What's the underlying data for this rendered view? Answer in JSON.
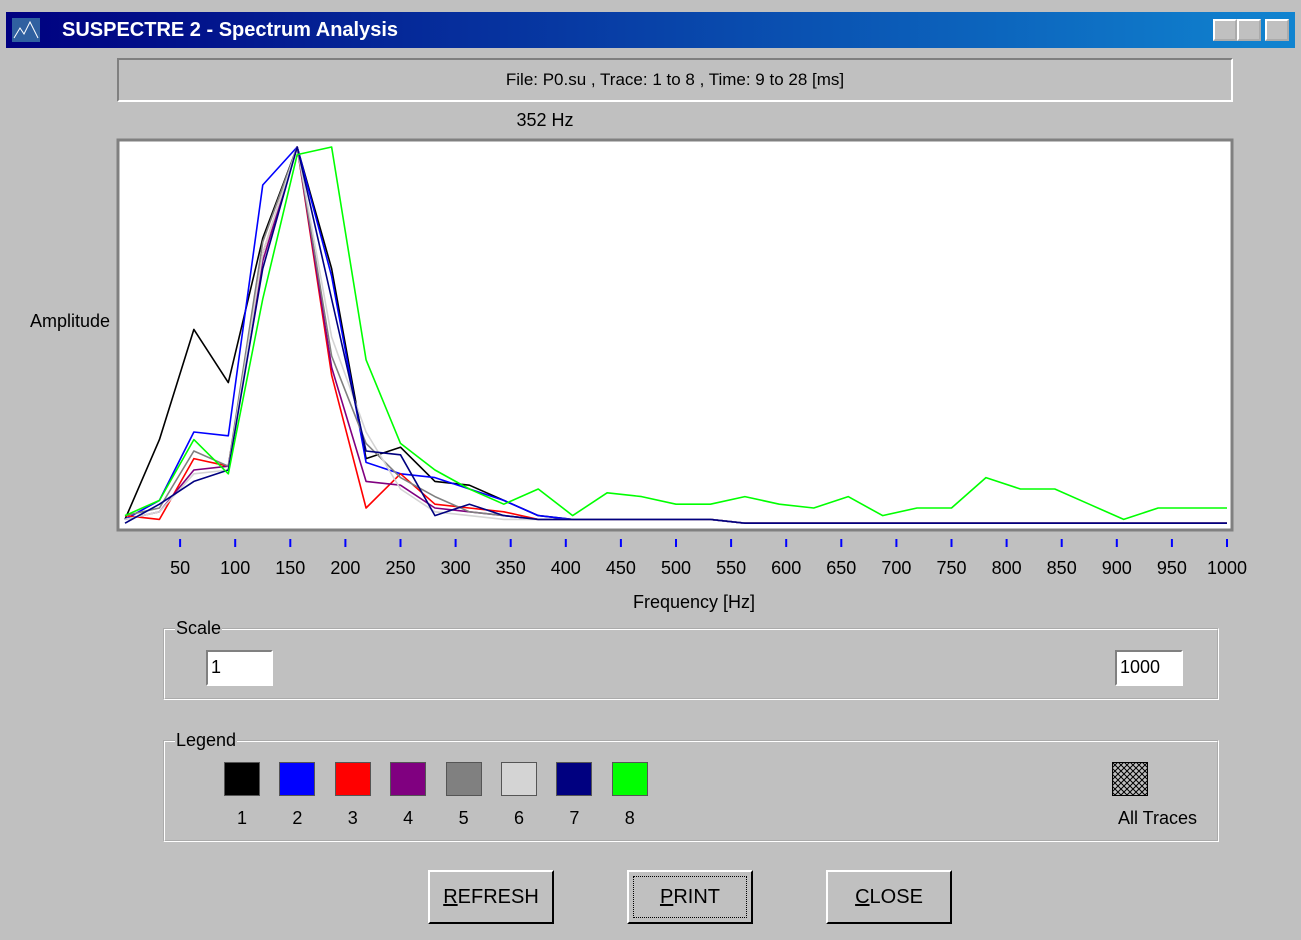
{
  "window": {
    "title": "SUSPECTRE 2 - Spectrum Analysis"
  },
  "info_bar": "File: P0.su , Trace: 1 to 8 , Time: 9 to 28 [ms]",
  "chart_data": {
    "type": "line",
    "annotation": "352 Hz",
    "xlabel": "Frequency [Hz]",
    "ylabel": "Amplitude",
    "x": [
      0,
      31.25,
      62.5,
      93.75,
      125,
      156.25,
      187.5,
      218.75,
      250,
      281.25,
      312.5,
      343.75,
      375,
      406.25,
      437.5,
      468.75,
      500,
      531.25,
      562.5,
      593.75,
      625,
      656.25,
      687.5,
      718.75,
      750,
      781.25,
      812.5,
      843.75,
      875,
      906.25,
      937.5,
      968.75,
      1000
    ],
    "xlim": [
      0,
      1000
    ],
    "xticks": [
      50,
      100,
      150,
      200,
      250,
      300,
      350,
      400,
      450,
      500,
      550,
      600,
      650,
      700,
      750,
      800,
      850,
      900,
      950,
      1000
    ],
    "ylim": [
      0,
      1
    ],
    "series": [
      {
        "name": "1",
        "color": "#000000",
        "values": [
          0.02,
          0.23,
          0.52,
          0.38,
          0.76,
          1.0,
          0.68,
          0.18,
          0.21,
          0.12,
          0.11,
          0.07,
          0.03,
          0.02,
          0.02,
          0.02,
          0.02,
          0.02,
          0.01,
          0.01,
          0.01,
          0.01,
          0.01,
          0.01,
          0.01,
          0.01,
          0.01,
          0.01,
          0.01,
          0.01,
          0.01,
          0.01,
          0.01
        ]
      },
      {
        "name": "2",
        "color": "#0000ff",
        "values": [
          0.02,
          0.07,
          0.25,
          0.24,
          0.9,
          1.0,
          0.66,
          0.17,
          0.14,
          0.13,
          0.1,
          0.07,
          0.03,
          0.02,
          0.02,
          0.02,
          0.02,
          0.02,
          0.01,
          0.01,
          0.01,
          0.01,
          0.01,
          0.01,
          0.01,
          0.01,
          0.01,
          0.01,
          0.01,
          0.01,
          0.01,
          0.01,
          0.01
        ]
      },
      {
        "name": "3",
        "color": "#ff0000",
        "values": [
          0.03,
          0.02,
          0.18,
          0.16,
          0.72,
          1.0,
          0.4,
          0.05,
          0.14,
          0.06,
          0.05,
          0.04,
          0.02,
          0.02,
          0.02,
          0.02,
          0.02,
          0.02,
          0.01,
          0.01,
          0.01,
          0.01,
          0.01,
          0.01,
          0.01,
          0.01,
          0.01,
          0.01,
          0.01,
          0.01,
          0.01,
          0.01,
          0.01
        ]
      },
      {
        "name": "4",
        "color": "#800080",
        "values": [
          0.02,
          0.04,
          0.15,
          0.16,
          0.7,
          1.0,
          0.42,
          0.12,
          0.11,
          0.05,
          0.04,
          0.03,
          0.02,
          0.02,
          0.02,
          0.02,
          0.02,
          0.02,
          0.01,
          0.01,
          0.01,
          0.01,
          0.01,
          0.01,
          0.01,
          0.01,
          0.01,
          0.01,
          0.01,
          0.01,
          0.01,
          0.01,
          0.01
        ]
      },
      {
        "name": "5",
        "color": "#808080",
        "values": [
          0.03,
          0.05,
          0.2,
          0.16,
          0.75,
          1.0,
          0.45,
          0.22,
          0.13,
          0.08,
          0.04,
          0.03,
          0.02,
          0.02,
          0.02,
          0.02,
          0.02,
          0.02,
          0.01,
          0.01,
          0.01,
          0.01,
          0.01,
          0.01,
          0.01,
          0.01,
          0.01,
          0.01,
          0.01,
          0.01,
          0.01,
          0.01,
          0.01
        ]
      },
      {
        "name": "6",
        "color": "#d4d4d4",
        "values": [
          0.02,
          0.04,
          0.14,
          0.15,
          0.72,
          1.0,
          0.5,
          0.25,
          0.1,
          0.04,
          0.03,
          0.02,
          0.02,
          0.02,
          0.02,
          0.02,
          0.02,
          0.02,
          0.01,
          0.01,
          0.01,
          0.01,
          0.01,
          0.01,
          0.01,
          0.01,
          0.01,
          0.01,
          0.01,
          0.01,
          0.01,
          0.01,
          0.01
        ]
      },
      {
        "name": "7",
        "color": "#000080",
        "values": [
          0.01,
          0.06,
          0.12,
          0.15,
          0.68,
          1.0,
          0.6,
          0.2,
          0.19,
          0.03,
          0.06,
          0.03,
          0.02,
          0.02,
          0.02,
          0.02,
          0.02,
          0.02,
          0.01,
          0.01,
          0.01,
          0.01,
          0.01,
          0.01,
          0.01,
          0.01,
          0.01,
          0.01,
          0.01,
          0.01,
          0.01,
          0.01,
          0.01
        ]
      },
      {
        "name": "8",
        "color": "#00ff00",
        "values": [
          0.03,
          0.07,
          0.23,
          0.14,
          0.6,
          0.98,
          1.0,
          0.44,
          0.22,
          0.15,
          0.1,
          0.06,
          0.1,
          0.03,
          0.09,
          0.08,
          0.06,
          0.06,
          0.08,
          0.06,
          0.05,
          0.08,
          0.03,
          0.05,
          0.05,
          0.13,
          0.1,
          0.1,
          0.06,
          0.02,
          0.05,
          0.05,
          0.05
        ]
      }
    ]
  },
  "scale": {
    "label": "Scale",
    "min": "1",
    "max": "1000"
  },
  "legend": {
    "label": "Legend",
    "all_traces": "All Traces"
  },
  "buttons": [
    "REFRESH",
    "PRINT",
    "CLOSE"
  ]
}
